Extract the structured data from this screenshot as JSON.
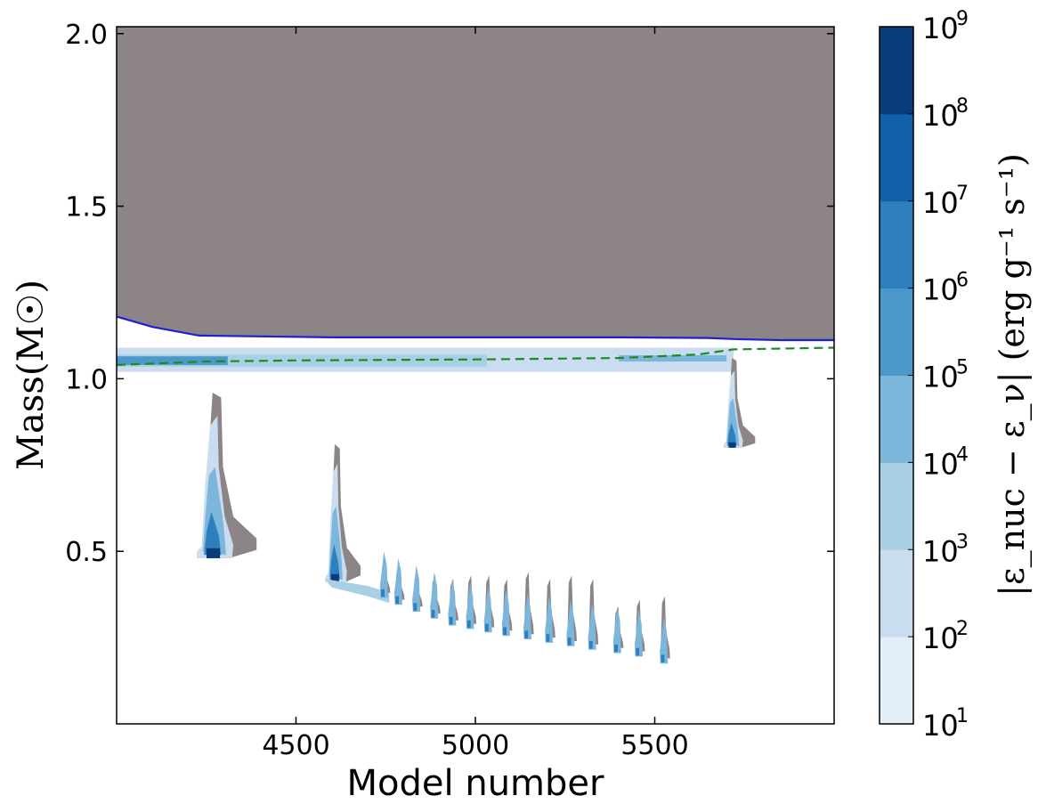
{
  "chart_data": {
    "type": "heatmap",
    "title": "",
    "xlabel": "Model number",
    "ylabel": "Mass(M☉)",
    "xlim": [
      4000,
      6000
    ],
    "ylim": [
      0,
      2.02
    ],
    "x_ticks": [
      4500,
      5000,
      5500
    ],
    "y_ticks": [
      0.5,
      1.0,
      1.5,
      2.0
    ],
    "x_tick_labels": [
      "4500",
      "5000",
      "5500"
    ],
    "y_tick_labels": [
      "0.5",
      "1.0",
      "1.5",
      "2.0"
    ],
    "colorbar": {
      "label": "|ε_nuc − ε_ν|  (erg g⁻¹ s⁻¹)",
      "scale": "log",
      "range": [
        10,
        1000000000
      ],
      "tick_base": "10",
      "tick_exponents": [
        "1",
        "2",
        "3",
        "4",
        "5",
        "6",
        "7",
        "8",
        "9"
      ],
      "colors": [
        "#e4eef8",
        "#cadcef",
        "#a9cfe4",
        "#7cb6da",
        "#4d98cb",
        "#2d7fbd",
        "#1160aa",
        "#0a3c7c"
      ]
    },
    "colors": {
      "convective_zone": "#8c8486",
      "boundary_line": "#1f1fd6",
      "dashed_line": "#1e8a1e"
    },
    "boundary_line": {
      "style": "solid",
      "points": [
        [
          4000,
          1.18
        ],
        [
          4100,
          1.15
        ],
        [
          4230,
          1.125
        ],
        [
          4600,
          1.12
        ],
        [
          5000,
          1.12
        ],
        [
          5400,
          1.12
        ],
        [
          5650,
          1.118
        ],
        [
          5720,
          1.115
        ],
        [
          5850,
          1.112
        ],
        [
          6000,
          1.112
        ]
      ]
    },
    "dashed_line": {
      "style": "dashed",
      "points": [
        [
          4000,
          1.04
        ],
        [
          4250,
          1.05
        ],
        [
          4500,
          1.053
        ],
        [
          5000,
          1.056
        ],
        [
          5400,
          1.06
        ],
        [
          5620,
          1.07
        ],
        [
          5720,
          1.085
        ],
        [
          6000,
          1.09
        ]
      ]
    },
    "convective_region": {
      "x_range": [
        4000,
        6000
      ],
      "y_top": 2.02,
      "lower_edge": "boundary_line"
    },
    "shell_band": {
      "x_range": [
        4000,
        5720
      ],
      "y_lower": 1.02,
      "y_upper": 1.09,
      "color_level": 4
    },
    "flashes": [
      {
        "x_start": 4220,
        "x_end": 4390,
        "y_base": 0.48,
        "y_top": 0.96,
        "peak_level": 8
      },
      {
        "x_start": 4580,
        "x_end": 4680,
        "y_base": 0.41,
        "y_top": 0.81,
        "peak_level": 8
      },
      {
        "x_start": 5690,
        "x_end": 5780,
        "y_base": 0.8,
        "y_top": 1.06,
        "peak_level": 8
      }
    ],
    "mini_flashes": [
      {
        "x": 4750,
        "y_base": 0.38,
        "y_top": 0.48
      },
      {
        "x": 4790,
        "y_base": 0.36,
        "y_top": 0.46
      },
      {
        "x": 4840,
        "y_base": 0.34,
        "y_top": 0.44
      },
      {
        "x": 4890,
        "y_base": 0.32,
        "y_top": 0.43
      },
      {
        "x": 4940,
        "y_base": 0.3,
        "y_top": 0.42
      },
      {
        "x": 4990,
        "y_base": 0.29,
        "y_top": 0.43
      },
      {
        "x": 5040,
        "y_base": 0.28,
        "y_top": 0.43
      },
      {
        "x": 5090,
        "y_base": 0.27,
        "y_top": 0.42
      },
      {
        "x": 5150,
        "y_base": 0.26,
        "y_top": 0.44
      },
      {
        "x": 5210,
        "y_base": 0.25,
        "y_top": 0.42
      },
      {
        "x": 5270,
        "y_base": 0.24,
        "y_top": 0.43
      },
      {
        "x": 5330,
        "y_base": 0.23,
        "y_top": 0.42
      },
      {
        "x": 5400,
        "y_base": 0.22,
        "y_top": 0.34
      },
      {
        "x": 5460,
        "y_base": 0.21,
        "y_top": 0.36
      },
      {
        "x": 5530,
        "y_base": 0.19,
        "y_top": 0.37
      }
    ]
  }
}
